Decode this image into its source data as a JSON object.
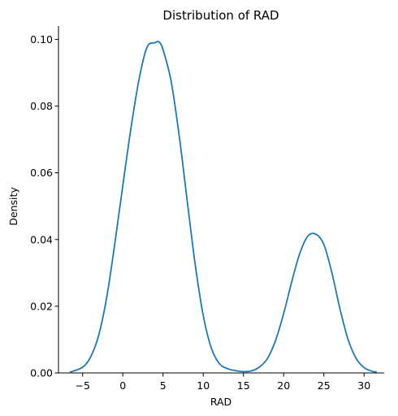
{
  "chart_data": {
    "type": "line",
    "title": "Distribution of RAD",
    "xlabel": "RAD",
    "ylabel": "Density",
    "xlim": [
      -8,
      32.5
    ],
    "ylim": [
      0,
      0.104
    ],
    "xticks": [
      -5,
      0,
      5,
      10,
      15,
      20,
      25,
      30
    ],
    "xtick_labels": [
      "−5",
      "0",
      "5",
      "10",
      "15",
      "20",
      "25",
      "30"
    ],
    "yticks": [
      0,
      0.02,
      0.04,
      0.06,
      0.08,
      0.1
    ],
    "ytick_labels": [
      "0.00",
      "0.02",
      "0.04",
      "0.06",
      "0.08",
      "0.10"
    ],
    "grid": false,
    "series": [
      {
        "color": "#1f77b4",
        "x": [
          -6.5,
          -5,
          -4,
          -3,
          -2,
          -1,
          0,
          1,
          2,
          3,
          4,
          4.5,
          5,
          6,
          7,
          8,
          9,
          10,
          11,
          12,
          13,
          14,
          15,
          16,
          17,
          18,
          19,
          20,
          21,
          22,
          23,
          24,
          25,
          26,
          27,
          28,
          29,
          30,
          31,
          31.5
        ],
        "y": [
          0.0003,
          0.0017,
          0.0048,
          0.0113,
          0.0227,
          0.0387,
          0.0562,
          0.0732,
          0.0878,
          0.0976,
          0.099,
          0.0992,
          0.0969,
          0.0875,
          0.0713,
          0.0517,
          0.0325,
          0.0172,
          0.0075,
          0.0028,
          0.0013,
          0.0007,
          0.0004,
          0.0006,
          0.0018,
          0.0044,
          0.0098,
          0.0178,
          0.0273,
          0.0358,
          0.041,
          0.0416,
          0.0385,
          0.03,
          0.0192,
          0.0101,
          0.0044,
          0.0016,
          0.0005,
          0.0003
        ]
      }
    ]
  }
}
